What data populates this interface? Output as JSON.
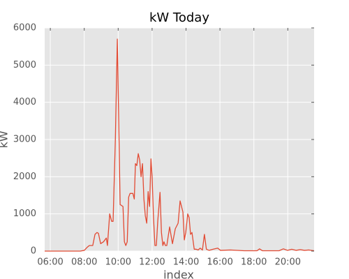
{
  "chart_data": {
    "type": "line",
    "title": "kW Today",
    "x_label": "index",
    "y_label": "kW",
    "x": [
      "05:40",
      "07:46",
      "08:00",
      "08:10",
      "08:18",
      "08:30",
      "08:38",
      "08:45",
      "08:50",
      "08:58",
      "09:08",
      "09:18",
      "09:22",
      "09:30",
      "09:37",
      "09:42",
      "09:50",
      "09:57",
      "10:07",
      "10:17",
      "10:22",
      "10:27",
      "10:32",
      "10:37",
      "10:42",
      "10:52",
      "10:57",
      "11:01",
      "11:06",
      "11:11",
      "11:16",
      "11:21",
      "11:26",
      "11:31",
      "11:36",
      "11:41",
      "11:46",
      "11:51",
      "11:56",
      "12:00",
      "12:05",
      "12:10",
      "12:15",
      "12:20",
      "12:28",
      "12:33",
      "12:38",
      "12:42",
      "12:47",
      "12:52",
      "13:02",
      "13:12",
      "13:22",
      "13:32",
      "13:39",
      "13:49",
      "13:54",
      "13:59",
      "14:06",
      "14:11",
      "14:16",
      "14:21",
      "14:29",
      "14:36",
      "14:43",
      "14:50",
      "14:58",
      "15:05",
      "15:12",
      "15:22",
      "15:35",
      "15:52",
      "16:02",
      "16:37",
      "17:26",
      "18:11",
      "18:20",
      "18:30",
      "19:29",
      "19:44",
      "19:59",
      "20:14",
      "20:29",
      "20:44",
      "20:59",
      "21:14",
      "21:33"
    ],
    "series": [
      {
        "name": "kW",
        "color": "#e24a33",
        "values": [
          0,
          0,
          20,
          100,
          150,
          150,
          450,
          500,
          480,
          200,
          250,
          350,
          150,
          1000,
          800,
          800,
          3000,
          5700,
          1250,
          1200,
          250,
          150,
          250,
          1450,
          1550,
          1550,
          1400,
          2350,
          2300,
          2620,
          2450,
          2000,
          2350,
          1400,
          950,
          750,
          1600,
          1200,
          2480,
          2000,
          900,
          150,
          150,
          800,
          1580,
          500,
          150,
          250,
          150,
          150,
          650,
          200,
          600,
          750,
          1350,
          1050,
          300,
          500,
          1000,
          900,
          450,
          500,
          50,
          50,
          30,
          80,
          30,
          450,
          50,
          20,
          50,
          80,
          20,
          30,
          10,
          10,
          60,
          10,
          10,
          60,
          20,
          50,
          20,
          40,
          20,
          30,
          10
        ]
      }
    ],
    "xlim": [
      "05:40",
      "21:33"
    ],
    "xticks": [
      "06:00",
      "08:00",
      "10:00",
      "12:00",
      "14:00",
      "16:00",
      "18:00",
      "20:00"
    ],
    "ylim": [
      0,
      6000
    ],
    "yticks": [
      0,
      1000,
      2000,
      3000,
      4000,
      5000,
      6000
    ],
    "grid": true
  }
}
